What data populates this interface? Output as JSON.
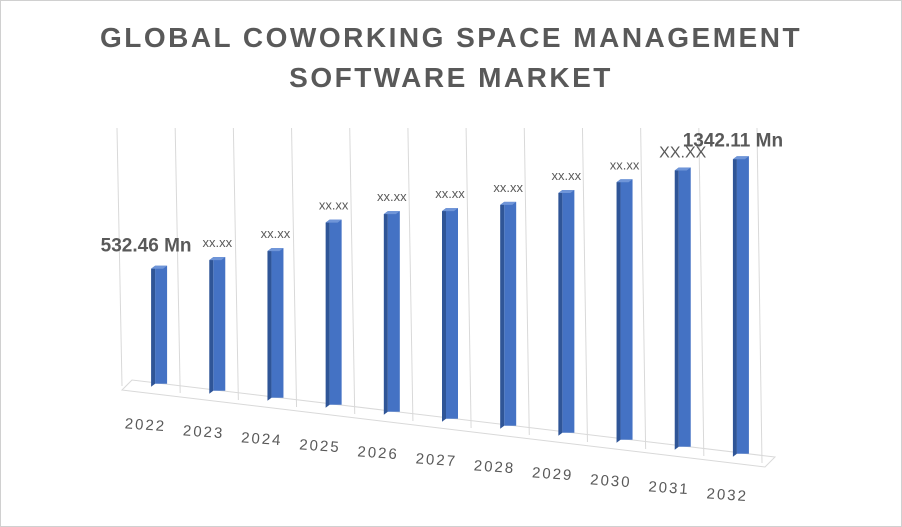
{
  "title": {
    "line1": "GLOBAL COWORKING SPACE MANAGEMENT",
    "line2": "SOFTWARE MARKET"
  },
  "colors": {
    "bar_front": "#4472c4",
    "bar_side": "#2f5597",
    "bar_top": "#6f95d8",
    "grid": "#d9d9d9",
    "label": "#595959"
  },
  "chart_data": {
    "type": "bar",
    "categories": [
      "2022",
      "2023",
      "2024",
      "2025",
      "2026",
      "2027",
      "2028",
      "2029",
      "2030",
      "2031",
      "2032"
    ],
    "values": [
      532.46,
      603,
      675,
      835,
      905,
      950,
      1010,
      1095,
      1175,
      1260,
      1342.11
    ],
    "data_labels": [
      "532.46 Mn",
      "xx.xx",
      "xx.xx",
      "xx.xx",
      "xx.xx",
      "xx.xx",
      "xx.xx",
      "xx.xx",
      "xx.xx",
      "XX.XX",
      "1342.11 Mn"
    ],
    "ylim": [
      0,
      1342.11
    ],
    "grid": true,
    "legend": "none",
    "perspective": "3d"
  }
}
